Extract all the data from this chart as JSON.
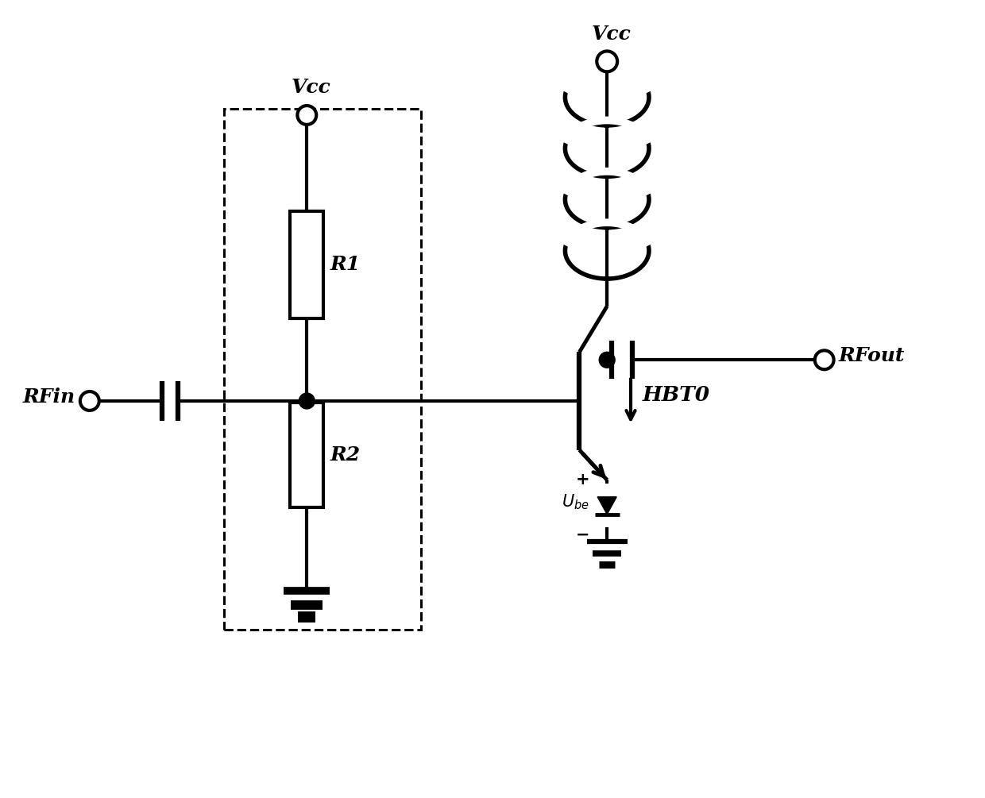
{
  "bg_color": "#ffffff",
  "lc": "#000000",
  "lw": 3.0,
  "fig_w": 12.4,
  "fig_h": 10.05,
  "dpi": 100,
  "xlim": [
    0,
    12.4
  ],
  "ylim": [
    0,
    10.05
  ]
}
